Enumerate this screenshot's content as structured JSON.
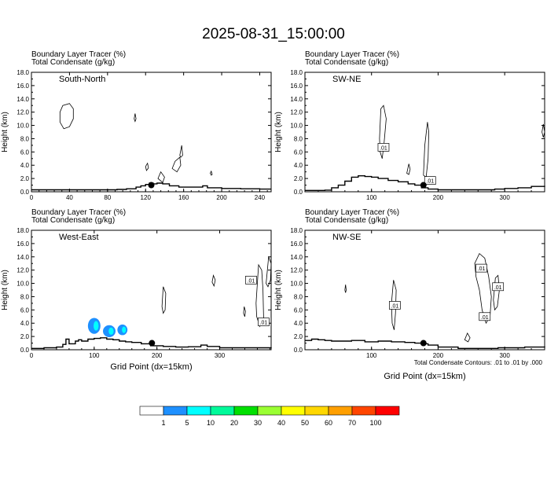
{
  "page_title": "2025-08-31_15:00:00",
  "footer_note": "Total Condensate Contours: .01 to .01 by .000",
  "panel_header": {
    "line1": "Boundary Layer Tracer   (%)",
    "line2": "Total Condensate   (g/kg)"
  },
  "ylabel": "Height (km)",
  "xlabel": "Grid Point (dx=15km)",
  "chart_data": [
    {
      "type": "contour",
      "label": "South-North",
      "xlim": [
        0,
        252
      ],
      "ylim": [
        0,
        18
      ],
      "xticks": [
        0,
        40,
        80,
        120,
        160,
        200,
        240
      ],
      "yticks": [
        0,
        2,
        4,
        6,
        8,
        10,
        12,
        14,
        16,
        18
      ],
      "xlabel": "",
      "marker": {
        "x": 126,
        "y": 1.0
      },
      "terrain": [
        [
          0,
          0.3
        ],
        [
          20,
          0.3
        ],
        [
          40,
          0.3
        ],
        [
          60,
          0.3
        ],
        [
          80,
          0.3
        ],
        [
          90,
          0.35
        ],
        [
          100,
          0.45
        ],
        [
          110,
          0.7
        ],
        [
          115,
          0.9
        ],
        [
          120,
          1.1
        ],
        [
          124,
          1.3
        ],
        [
          128,
          1.2
        ],
        [
          132,
          1.3
        ],
        [
          138,
          1.2
        ],
        [
          145,
          0.9
        ],
        [
          155,
          0.7
        ],
        [
          165,
          0.7
        ],
        [
          175,
          0.7
        ],
        [
          180,
          0.9
        ],
        [
          185,
          0.6
        ],
        [
          200,
          0.5
        ],
        [
          220,
          0.45
        ],
        [
          240,
          0.4
        ],
        [
          252,
          0.4
        ]
      ],
      "contour_labels": [],
      "precip_patches": []
    },
    {
      "type": "contour",
      "label": "SW-NE",
      "xlim": [
        0,
        360
      ],
      "ylim": [
        0,
        18
      ],
      "xticks": [
        100,
        200,
        300
      ],
      "yticks": [
        0,
        2,
        4,
        6,
        8,
        10,
        12,
        14,
        16,
        18
      ],
      "xlabel": "",
      "marker": {
        "x": 178,
        "y": 1.0
      },
      "terrain": [
        [
          0,
          0.2
        ],
        [
          30,
          0.25
        ],
        [
          40,
          0.6
        ],
        [
          50,
          1.0
        ],
        [
          60,
          1.6
        ],
        [
          70,
          2.2
        ],
        [
          80,
          2.4
        ],
        [
          90,
          2.3
        ],
        [
          100,
          2.2
        ],
        [
          110,
          2.0
        ],
        [
          125,
          1.7
        ],
        [
          140,
          1.5
        ],
        [
          155,
          1.2
        ],
        [
          165,
          1.0
        ],
        [
          175,
          0.6
        ],
        [
          185,
          0.4
        ],
        [
          200,
          0.3
        ],
        [
          220,
          0.3
        ],
        [
          250,
          0.3
        ],
        [
          270,
          0.3
        ],
        [
          285,
          0.4
        ],
        [
          300,
          0.5
        ],
        [
          320,
          0.6
        ],
        [
          340,
          0.8
        ],
        [
          360,
          0.9
        ]
      ],
      "contour_labels": [
        {
          "x": 118,
          "y": 6.7,
          "text": ".01"
        },
        {
          "x": 188,
          "y": 1.7,
          "text": ".01"
        }
      ],
      "precip_patches": []
    },
    {
      "type": "contour",
      "label": "West-East",
      "xlim": [
        0,
        382
      ],
      "ylim": [
        0,
        18
      ],
      "xticks": [
        0,
        100,
        200,
        300
      ],
      "yticks": [
        0,
        2,
        4,
        6,
        8,
        10,
        12,
        14,
        16,
        18
      ],
      "xlabel": "Grid Point (dx=15km)",
      "marker": {
        "x": 192,
        "y": 1.0
      },
      "terrain": [
        [
          0,
          0.2
        ],
        [
          20,
          0.3
        ],
        [
          40,
          0.4
        ],
        [
          50,
          0.8
        ],
        [
          55,
          1.6
        ],
        [
          60,
          0.9
        ],
        [
          70,
          1.3
        ],
        [
          75,
          1.5
        ],
        [
          80,
          1.3
        ],
        [
          90,
          1.6
        ],
        [
          100,
          1.7
        ],
        [
          110,
          1.8
        ],
        [
          120,
          1.6
        ],
        [
          130,
          1.5
        ],
        [
          140,
          1.3
        ],
        [
          150,
          1.2
        ],
        [
          160,
          1.1
        ],
        [
          175,
          0.9
        ],
        [
          190,
          0.6
        ],
        [
          210,
          0.5
        ],
        [
          230,
          0.4
        ],
        [
          250,
          0.45
        ],
        [
          270,
          0.7
        ],
        [
          280,
          0.5
        ],
        [
          300,
          0.3
        ],
        [
          330,
          0.3
        ],
        [
          360,
          0.3
        ],
        [
          382,
          0.35
        ]
      ],
      "contour_labels": [
        {
          "x": 350,
          "y": 10.5,
          "text": ".01"
        },
        {
          "x": 370,
          "y": 4.2,
          "text": ".01"
        }
      ],
      "precip_patches": [
        {
          "x": 100,
          "y": 3.6,
          "rx": 10,
          "ry": 1.2
        },
        {
          "x": 124,
          "y": 2.8,
          "rx": 10,
          "ry": 0.9
        },
        {
          "x": 145,
          "y": 3.0,
          "rx": 8,
          "ry": 0.8
        }
      ]
    },
    {
      "type": "contour",
      "label": "NW-SE",
      "xlim": [
        0,
        360
      ],
      "ylim": [
        0,
        18
      ],
      "xticks": [
        100,
        200,
        300
      ],
      "yticks": [
        0,
        2,
        4,
        6,
        8,
        10,
        12,
        14,
        16,
        18
      ],
      "xlabel": "Grid Point (dx=15km)",
      "marker": {
        "x": 178,
        "y": 1.0
      },
      "terrain": [
        [
          0,
          1.4
        ],
        [
          10,
          1.6
        ],
        [
          20,
          1.5
        ],
        [
          30,
          1.4
        ],
        [
          40,
          1.3
        ],
        [
          50,
          1.3
        ],
        [
          70,
          1.4
        ],
        [
          90,
          1.2
        ],
        [
          110,
          1.3
        ],
        [
          130,
          1.2
        ],
        [
          150,
          1.1
        ],
        [
          165,
          1.0
        ],
        [
          175,
          0.9
        ],
        [
          185,
          0.7
        ],
        [
          200,
          0.4
        ],
        [
          230,
          0.2
        ],
        [
          260,
          0.2
        ],
        [
          290,
          0.3
        ],
        [
          310,
          0.3
        ],
        [
          330,
          0.4
        ],
        [
          360,
          0.5
        ]
      ],
      "contour_labels": [
        {
          "x": 135,
          "y": 6.7,
          "text": ".01"
        },
        {
          "x": 265,
          "y": 12.3,
          "text": ".01"
        },
        {
          "x": 290,
          "y": 9.5,
          "text": ".01"
        },
        {
          "x": 270,
          "y": 5.0,
          "text": ".01"
        }
      ],
      "precip_patches": []
    }
  ],
  "colorbar": {
    "labels": [
      "1",
      "5",
      "10",
      "20",
      "30",
      "40",
      "50",
      "60",
      "70",
      "100"
    ],
    "colors": [
      "#ffffff",
      "#1e90ff",
      "#00ffff",
      "#00fa9a",
      "#00e000",
      "#9aff32",
      "#ffff00",
      "#ffd700",
      "#ff9f00",
      "#ff4500",
      "#ff0000"
    ]
  }
}
